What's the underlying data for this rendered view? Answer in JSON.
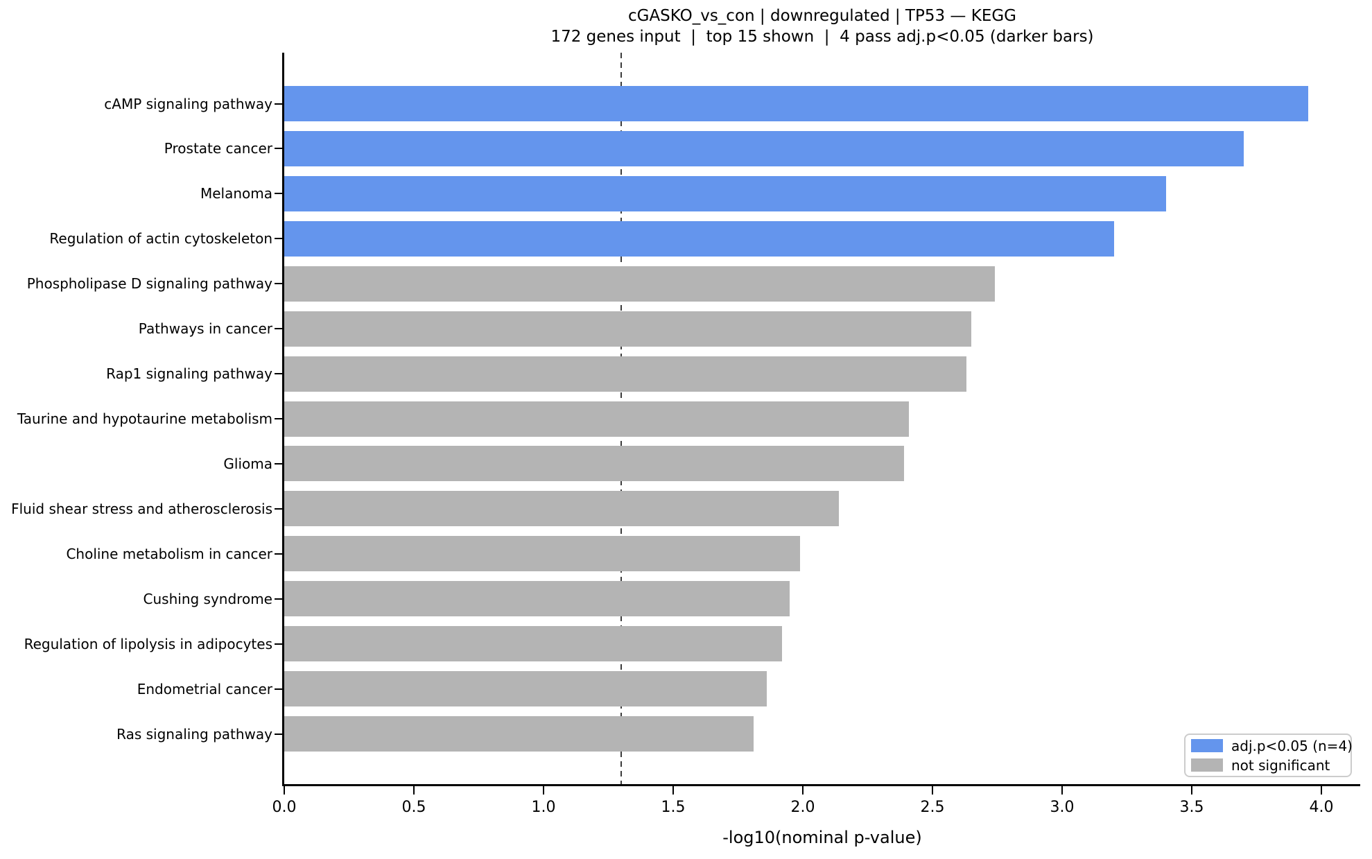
{
  "title": "cGASKO_vs_con | downregulated | TP53 — KEGG",
  "subtitle": "172 genes input  |  top 15 shown  |  4 pass adj.p<0.05 (darker bars)",
  "xlabel": "-log10(nominal p-value)",
  "colors": {
    "significant": "#6495ED",
    "not_significant": "#B4B4B4",
    "threshold_line": "#3b3b3b",
    "axis": "#000000"
  },
  "legend": {
    "items": [
      {
        "label": "adj.p<0.05 (n=4)",
        "color_key": "significant"
      },
      {
        "label": "not significant",
        "color_key": "not_significant"
      }
    ]
  },
  "chart_data": {
    "type": "bar",
    "orientation": "horizontal",
    "title": "cGASKO_vs_con | downregulated | TP53 — KEGG",
    "subtitle": "172 genes input  |  top 15 shown  |  4 pass adj.p<0.05 (darker bars)",
    "xlabel": "-log10(nominal p-value)",
    "ylabel": "",
    "xlim": [
      0,
      4.15
    ],
    "x_ticks": [
      "0.0",
      "0.5",
      "1.0",
      "1.5",
      "2.0",
      "2.5",
      "3.0",
      "3.5",
      "4.0"
    ],
    "threshold_x": 1.3,
    "threshold_style": "dashed",
    "grid": false,
    "legend_position": "lower right",
    "categories": [
      "cAMP signaling pathway",
      "Prostate cancer",
      "Melanoma",
      "Regulation of actin cytoskeleton",
      "Phospholipase D signaling pathway",
      "Pathways in cancer",
      "Rap1 signaling pathway",
      "Taurine and hypotaurine metabolism",
      "Glioma",
      "Fluid shear stress and atherosclerosis",
      "Choline metabolism in cancer",
      "Cushing syndrome",
      "Regulation of lipolysis in adipocytes",
      "Endometrial cancer",
      "Ras signaling pathway"
    ],
    "values": [
      3.95,
      3.7,
      3.4,
      3.2,
      2.74,
      2.65,
      2.63,
      2.41,
      2.39,
      2.14,
      1.99,
      1.95,
      1.92,
      1.86,
      1.81
    ],
    "significant": [
      true,
      true,
      true,
      true,
      false,
      false,
      false,
      false,
      false,
      false,
      false,
      false,
      false,
      false,
      false
    ]
  }
}
